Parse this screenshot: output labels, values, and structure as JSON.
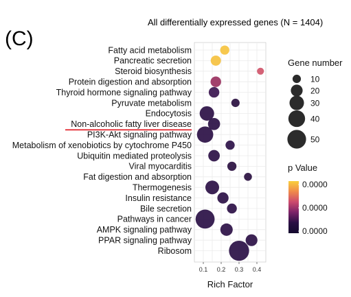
{
  "panel_label": "(C)",
  "chart_data": {
    "type": "scatter",
    "title": "All differentially expressed genes (N = 1404)",
    "xlabel": "Rich Factor",
    "ylabel": "",
    "xlim": [
      0.05,
      0.45
    ],
    "x_ticks": [
      "0.1",
      "0.2",
      "0.3",
      "0.4"
    ],
    "grid": true,
    "highlighted_category": "Non-alcoholic fatty liver disease",
    "categories": [
      "Fatty acid metabolism",
      "Pancreatic secretion",
      "Steroid biosynthesis",
      "Protein digestion and absorption",
      "Thyroid hormone signaling pathway",
      "Pyruvate metabolism",
      "Endocytosis",
      "Non-alcoholic fatty liver disease",
      "PI3K-Akt signaling pathway",
      "Metabolism of xenobiotics by cytochrome P450",
      "Ubiquitin mediated proteolysis",
      "Viral myocarditis",
      "Fat digestion and absorption",
      "Thermogenesis",
      "Insulin resistance",
      "Bile secretion",
      "Pathways in cancer",
      "AMPK signaling pathway",
      "PPAR signaling pathway",
      "Ribosom"
    ],
    "points": [
      {
        "category": "Fatty acid metabolism",
        "x": 0.22,
        "gene_number": 12,
        "color": "#f6c33f"
      },
      {
        "category": "Pancreatic secretion",
        "x": 0.17,
        "gene_number": 15,
        "color": "#f5c140"
      },
      {
        "category": "Steroid biosynthesis",
        "x": 0.42,
        "gene_number": 7,
        "color": "#d0556a"
      },
      {
        "category": "Protein digestion and absorption",
        "x": 0.17,
        "gene_number": 16,
        "color": "#9a3160"
      },
      {
        "category": "Thyroid hormone signaling pathway",
        "x": 0.16,
        "gene_number": 16,
        "color": "#3b1650"
      },
      {
        "category": "Pyruvate metabolism",
        "x": 0.28,
        "gene_number": 10,
        "color": "#2a1040"
      },
      {
        "category": "Endocytosis",
        "x": 0.12,
        "gene_number": 30,
        "color": "#2b1045"
      },
      {
        "category": "Non-alcoholic fatty liver disease",
        "x": 0.16,
        "gene_number": 21,
        "color": "#2a1045"
      },
      {
        "category": "PI3K-Akt signaling pathway",
        "x": 0.11,
        "gene_number": 38,
        "color": "#2b1045"
      },
      {
        "category": "Metabolism of xenobiotics by cytochrome P450",
        "x": 0.25,
        "gene_number": 12,
        "color": "#2d1148"
      },
      {
        "category": "Ubiquitin mediated proteolysis",
        "x": 0.16,
        "gene_number": 19,
        "color": "#2b1045"
      },
      {
        "category": "Viral myocarditis",
        "x": 0.26,
        "gene_number": 12,
        "color": "#2a1040"
      },
      {
        "category": "Fat digestion and absorption",
        "x": 0.35,
        "gene_number": 9,
        "color": "#2a1040"
      },
      {
        "category": "Thermogenesis",
        "x": 0.15,
        "gene_number": 27,
        "color": "#2b1045"
      },
      {
        "category": "Insulin resistance",
        "x": 0.21,
        "gene_number": 18,
        "color": "#2b1045"
      },
      {
        "category": "Bile secretion",
        "x": 0.26,
        "gene_number": 14,
        "color": "#2b1045"
      },
      {
        "category": "Pathways in cancer",
        "x": 0.11,
        "gene_number": 52,
        "color": "#2a1045"
      },
      {
        "category": "AMPK signaling pathway",
        "x": 0.23,
        "gene_number": 22,
        "color": "#2b1045"
      },
      {
        "category": "PPAR signaling pathway",
        "x": 0.37,
        "gene_number": 20,
        "color": "#2b1045"
      },
      {
        "category": "Ribosom",
        "x": 0.3,
        "gene_number": 58,
        "color": "#2a1045"
      }
    ],
    "size_legend": {
      "title": "Gene number",
      "items": [
        {
          "label": "10",
          "value": 10
        },
        {
          "label": "20",
          "value": 20
        },
        {
          "label": "30",
          "value": 30
        },
        {
          "label": "40",
          "value": 40
        },
        {
          "label": "50",
          "value": 50
        }
      ]
    },
    "color_legend": {
      "title": "p Value",
      "labels": [
        "0.0000",
        "0.0000",
        "0.0000"
      ],
      "colors": [
        "#f9cf3d",
        "#f08a4b",
        "#cc4a6e",
        "#7b2268",
        "#2a0f44",
        "#140a2e"
      ]
    }
  }
}
